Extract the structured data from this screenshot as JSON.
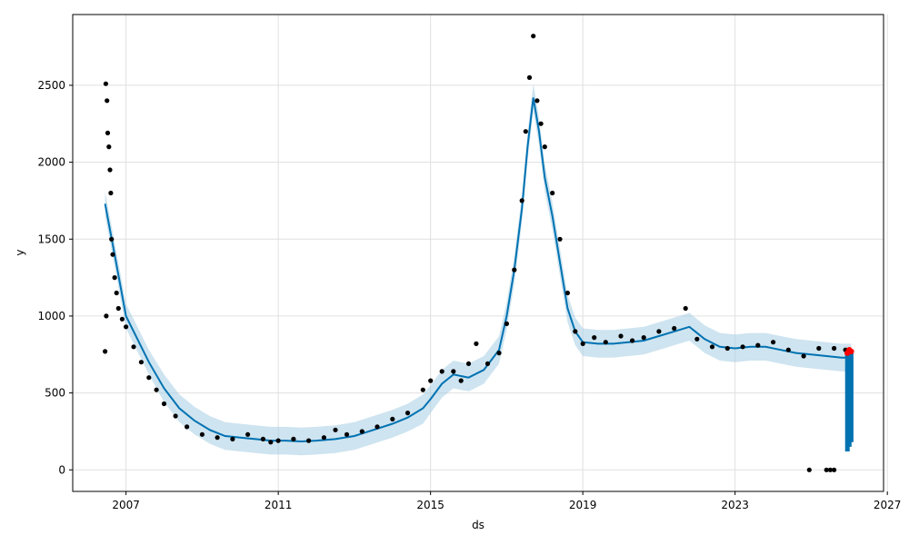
{
  "colors": {
    "observed": "#000000",
    "forecast_line": "#0072B2",
    "uncertainty_band": "#A6CEE3",
    "highlight_points": "#FF0000",
    "grid": "#E0E0E0",
    "frame": "#000000",
    "background": "#FFFFFF"
  },
  "chart_data": {
    "type": "scatter",
    "title": "",
    "xlabel": "ds",
    "ylabel": "y",
    "xlim": [
      2005.6,
      2026.9
    ],
    "ylim": [
      -140,
      2960
    ],
    "grid": true,
    "legend": "none",
    "x_ticks": [
      2007,
      2011,
      2015,
      2019,
      2023,
      2027
    ],
    "x_tick_labels": [
      "2007",
      "2011",
      "2015",
      "2019",
      "2023",
      "2027"
    ],
    "y_ticks": [
      0,
      500,
      1000,
      1500,
      2000,
      2500
    ],
    "y_tick_labels": [
      "0",
      "500",
      "1000",
      "1500",
      "2000",
      "2500"
    ],
    "series": [
      {
        "kind": "observed",
        "color": "#000000",
        "x": [
          2006.45,
          2006.47,
          2006.48,
          2006.5,
          2006.52,
          2006.55,
          2006.58,
          2006.6,
          2006.62,
          2006.65,
          2006.7,
          2006.75,
          2006.8,
          2006.9,
          2007.0,
          2007.2,
          2007.4,
          2007.6,
          2007.8,
          2008.0,
          2008.3,
          2008.6,
          2009.0,
          2009.4,
          2009.8,
          2010.2,
          2010.6,
          2010.8,
          2011.0,
          2011.4,
          2011.8,
          2012.2,
          2012.5,
          2012.8,
          2013.2,
          2013.6,
          2014.0,
          2014.4,
          2014.8,
          2015.0,
          2015.3,
          2015.6,
          2015.8,
          2016.0,
          2016.2,
          2016.5,
          2016.8,
          2017.0,
          2017.2,
          2017.4,
          2017.5,
          2017.6,
          2017.7,
          2017.8,
          2017.9,
          2018.0,
          2018.2,
          2018.4,
          2018.6,
          2018.8,
          2019.0,
          2019.3,
          2019.6,
          2020.0,
          2020.3,
          2020.6,
          2021.0,
          2021.4,
          2021.7,
          2022.0,
          2022.4,
          2022.8,
          2023.2,
          2023.6,
          2024.0,
          2024.4,
          2024.8,
          2025.2,
          2025.6,
          2025.9,
          2024.95,
          2025.4,
          2025.5,
          2025.6
        ],
        "y": [
          770,
          2510,
          1000,
          2400,
          2190,
          2100,
          1950,
          1800,
          1500,
          1400,
          1250,
          1150,
          1050,
          980,
          930,
          800,
          700,
          600,
          520,
          430,
          350,
          280,
          230,
          210,
          200,
          230,
          200,
          180,
          190,
          200,
          190,
          210,
          260,
          230,
          250,
          280,
          330,
          370,
          520,
          580,
          640,
          640,
          580,
          690,
          820,
          690,
          760,
          950,
          1300,
          1750,
          2200,
          2550,
          2820,
          2400,
          2250,
          2100,
          1800,
          1500,
          1150,
          900,
          820,
          860,
          830,
          870,
          840,
          860,
          900,
          920,
          1050,
          850,
          800,
          790,
          800,
          810,
          830,
          780,
          740,
          790,
          790,
          780,
          0,
          0,
          0,
          0
        ]
      },
      {
        "kind": "forecast",
        "color": "#0072B2",
        "x": [
          2006.45,
          2006.7,
          2007.0,
          2007.3,
          2007.6,
          2008.0,
          2008.4,
          2008.8,
          2009.2,
          2009.6,
          2010.0,
          2010.4,
          2010.8,
          2011.2,
          2011.6,
          2012.0,
          2012.5,
          2013.0,
          2013.5,
          2014.0,
          2014.4,
          2014.8,
          2015.0,
          2015.3,
          2015.6,
          2016.0,
          2016.4,
          2016.8,
          2017.0,
          2017.2,
          2017.4,
          2017.55,
          2017.7,
          2017.85,
          2018.0,
          2018.2,
          2018.4,
          2018.6,
          2018.8,
          2019.0,
          2019.4,
          2019.8,
          2020.2,
          2020.6,
          2021.0,
          2021.4,
          2021.8,
          2022.2,
          2022.6,
          2023.0,
          2023.4,
          2023.8,
          2024.2,
          2024.6,
          2025.0,
          2025.4,
          2025.8,
          2026.05
        ],
        "y": [
          1730,
          1400,
          1000,
          850,
          700,
          530,
          400,
          320,
          260,
          220,
          210,
          200,
          190,
          190,
          185,
          190,
          200,
          220,
          260,
          300,
          340,
          400,
          460,
          560,
          620,
          600,
          650,
          780,
          1000,
          1300,
          1700,
          2100,
          2420,
          2200,
          1900,
          1650,
          1350,
          1050,
          900,
          830,
          820,
          820,
          830,
          840,
          870,
          900,
          930,
          850,
          800,
          790,
          800,
          800,
          780,
          760,
          750,
          740,
          730,
          730
        ]
      },
      {
        "kind": "uncertainty",
        "color": "#A6CEE3",
        "x": [
          2006.45,
          2006.7,
          2007.0,
          2007.3,
          2007.6,
          2008.0,
          2008.4,
          2008.8,
          2009.2,
          2009.6,
          2010.0,
          2010.4,
          2010.8,
          2011.2,
          2011.6,
          2012.0,
          2012.5,
          2013.0,
          2013.5,
          2014.0,
          2014.4,
          2014.8,
          2015.0,
          2015.3,
          2015.6,
          2016.0,
          2016.4,
          2016.8,
          2017.0,
          2017.2,
          2017.4,
          2017.55,
          2017.7,
          2017.85,
          2018.0,
          2018.2,
          2018.4,
          2018.6,
          2018.8,
          2019.0,
          2019.4,
          2019.8,
          2020.2,
          2020.6,
          2021.0,
          2021.4,
          2021.8,
          2022.2,
          2022.6,
          2023.0,
          2023.4,
          2023.8,
          2024.2,
          2024.6,
          2025.0,
          2025.4,
          2025.8,
          2026.05
        ],
        "lower": [
          1650,
          1320,
          920,
          770,
          620,
          440,
          310,
          230,
          170,
          130,
          120,
          110,
          100,
          100,
          95,
          100,
          110,
          130,
          170,
          210,
          250,
          300,
          370,
          470,
          530,
          510,
          560,
          690,
          910,
          1210,
          1610,
          2010,
          2330,
          2110,
          1810,
          1560,
          1260,
          960,
          810,
          740,
          730,
          730,
          740,
          750,
          780,
          810,
          840,
          760,
          710,
          700,
          710,
          710,
          690,
          670,
          660,
          650,
          640,
          640
        ],
        "upper": [
          1810,
          1480,
          1080,
          930,
          780,
          620,
          490,
          410,
          350,
          310,
          300,
          290,
          280,
          280,
          275,
          280,
          290,
          310,
          350,
          390,
          430,
          490,
          550,
          650,
          710,
          690,
          740,
          870,
          1090,
          1390,
          1790,
          2190,
          2510,
          2290,
          1990,
          1740,
          1440,
          1140,
          990,
          920,
          910,
          910,
          920,
          930,
          960,
          990,
          1020,
          940,
          890,
          880,
          890,
          890,
          870,
          850,
          840,
          830,
          820,
          820
        ]
      },
      {
        "kind": "forecast_tail",
        "color": "#0072B2",
        "x": [
          2025.95,
          2025.95,
          2026.0,
          2026.0,
          2026.05,
          2026.05
        ],
        "y": [
          120,
          760,
          150,
          750,
          180,
          770
        ]
      },
      {
        "kind": "highlight",
        "color": "#FF0000",
        "x": [
          2025.95,
          2026.0,
          2026.05
        ],
        "y": [
          760,
          780,
          770
        ]
      }
    ]
  }
}
